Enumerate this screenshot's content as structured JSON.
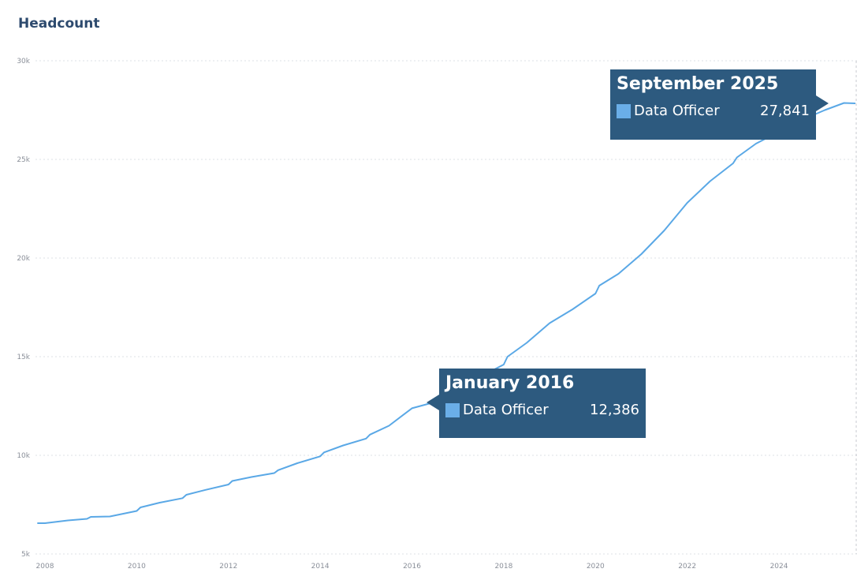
{
  "chart_data": {
    "type": "line",
    "title": "Headcount",
    "xlabel": "",
    "ylabel": "",
    "ylim": [
      5000,
      30000
    ],
    "yticks": [
      {
        "value": 5000,
        "label": "5k"
      },
      {
        "value": 10000,
        "label": "10k"
      },
      {
        "value": 15000,
        "label": "15k"
      },
      {
        "value": 20000,
        "label": "20k"
      },
      {
        "value": 25000,
        "label": "25k"
      },
      {
        "value": 30000,
        "label": "30k"
      }
    ],
    "xticks": [
      "2008",
      "2010",
      "2012",
      "2014",
      "2016",
      "2018",
      "2020",
      "2022",
      "2024"
    ],
    "grid": "horizontal dotted",
    "color": "#5aa8e6",
    "series": [
      {
        "name": "Data Officer",
        "points": [
          [
            "2007-11",
            6560
          ],
          [
            "2008-01",
            6560
          ],
          [
            "2008-07",
            6700
          ],
          [
            "2008-12",
            6780
          ],
          [
            "2009-01",
            6880
          ],
          [
            "2009-06",
            6900
          ],
          [
            "2010-01",
            7180
          ],
          [
            "2010-02",
            7360
          ],
          [
            "2010-07",
            7600
          ],
          [
            "2011-01",
            7830
          ],
          [
            "2011-02",
            8000
          ],
          [
            "2011-07",
            8250
          ],
          [
            "2012-01",
            8520
          ],
          [
            "2012-02",
            8700
          ],
          [
            "2012-07",
            8900
          ],
          [
            "2013-01",
            9100
          ],
          [
            "2013-02",
            9250
          ],
          [
            "2013-07",
            9600
          ],
          [
            "2014-01",
            9950
          ],
          [
            "2014-02",
            10150
          ],
          [
            "2014-07",
            10500
          ],
          [
            "2015-01",
            10850
          ],
          [
            "2015-02",
            11050
          ],
          [
            "2015-07",
            11500
          ],
          [
            "2016-01",
            12386
          ],
          [
            "2016-07",
            12700
          ],
          [
            "2017-01",
            13300
          ],
          [
            "2017-07",
            14000
          ],
          [
            "2018-01",
            14600
          ],
          [
            "2018-02",
            15000
          ],
          [
            "2018-07",
            15700
          ],
          [
            "2019-01",
            16700
          ],
          [
            "2019-07",
            17400
          ],
          [
            "2020-01",
            18200
          ],
          [
            "2020-02",
            18600
          ],
          [
            "2020-07",
            19200
          ],
          [
            "2021-01",
            20200
          ],
          [
            "2021-07",
            21400
          ],
          [
            "2022-01",
            22800
          ],
          [
            "2022-07",
            23900
          ],
          [
            "2023-01",
            24800
          ],
          [
            "2023-02",
            25100
          ],
          [
            "2023-07",
            25800
          ],
          [
            "2024-01",
            26400
          ],
          [
            "2024-07",
            27000
          ],
          [
            "2025-01",
            27500
          ],
          [
            "2025-06",
            27860
          ],
          [
            "2025-09",
            27841
          ]
        ]
      }
    ],
    "tooltips": [
      {
        "title": "January 2016",
        "series": "Data Officer",
        "value": "12,386"
      },
      {
        "title": "September 2025",
        "series": "Data Officer",
        "value": "27,841"
      }
    ]
  }
}
